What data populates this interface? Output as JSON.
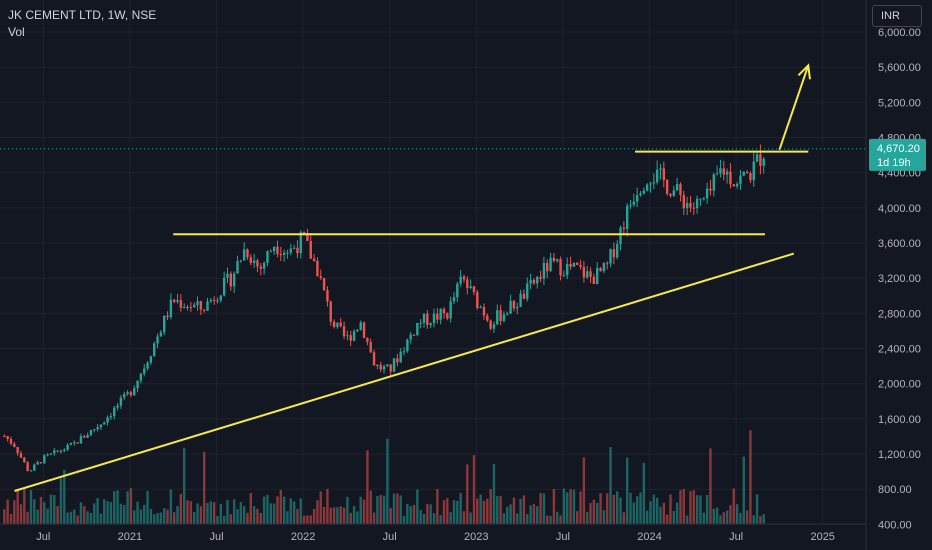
{
  "header": {
    "title": "JK CEMENT LTD, 1W, NSE",
    "volume_label": "Vol"
  },
  "currency_button": "INR",
  "colors": {
    "up": "#26a69a",
    "down": "#ef5350",
    "line": "#f5e94a",
    "price_tag": "#26a69a",
    "background": "#131722",
    "axis_text": "#b2b5be"
  },
  "price_tag": {
    "price": "4,670.20",
    "countdown": "1d 19h",
    "value": 4670.2
  },
  "chart_data": {
    "type": "candlestick",
    "title": "JK CEMENT LTD, 1W, NSE",
    "y_axis": {
      "ticks": [
        400,
        800,
        1200,
        1600,
        2000,
        2400,
        2800,
        3200,
        3600,
        4000,
        4400,
        4800,
        5200,
        5600,
        6000
      ],
      "tick_labels": [
        "400.00",
        "800.00",
        "1,200.00",
        "1,600.00",
        "2,000.00",
        "2,400.00",
        "2,800.00",
        "3,200.00",
        "3,600.00",
        "4,000.00",
        "4,400.00",
        "4,800.00",
        "5,200.00",
        "5,600.00",
        "6,000.00"
      ],
      "range": [
        200,
        6250
      ]
    },
    "x_axis": {
      "labels": [
        "Jul",
        "2021",
        "Jul",
        "2022",
        "Jul",
        "2023",
        "Jul",
        "2024",
        "Jul",
        "2025"
      ],
      "dates": [
        "2020-07",
        "2021-01",
        "2021-07",
        "2022-01",
        "2022-07",
        "2023-01",
        "2023-07",
        "2024-01",
        "2024-07",
        "2025-01"
      ],
      "range": [
        "2020-04",
        "2025-04"
      ]
    },
    "price_path": [
      {
        "date": "2020-04",
        "price": 1450
      },
      {
        "date": "2020-05",
        "price": 1300
      },
      {
        "date": "2020-06",
        "price": 1000
      },
      {
        "date": "2020-07",
        "price": 1150
      },
      {
        "date": "2020-09",
        "price": 1300
      },
      {
        "date": "2020-11",
        "price": 1550
      },
      {
        "date": "2021-01",
        "price": 1900
      },
      {
        "date": "2021-02",
        "price": 2200
      },
      {
        "date": "2021-04",
        "price": 2950
      },
      {
        "date": "2021-06",
        "price": 2850
      },
      {
        "date": "2021-08",
        "price": 3200
      },
      {
        "date": "2021-09",
        "price": 3550
      },
      {
        "date": "2021-10",
        "price": 3300
      },
      {
        "date": "2021-11",
        "price": 3600
      },
      {
        "date": "2021-12",
        "price": 3500
      },
      {
        "date": "2022-01",
        "price": 3650
      },
      {
        "date": "2022-02",
        "price": 3300
      },
      {
        "date": "2022-03",
        "price": 2700
      },
      {
        "date": "2022-04",
        "price": 2500
      },
      {
        "date": "2022-05",
        "price": 2700
      },
      {
        "date": "2022-06",
        "price": 2200
      },
      {
        "date": "2022-07",
        "price": 2150
      },
      {
        "date": "2022-09",
        "price": 2700
      },
      {
        "date": "2022-11",
        "price": 2800
      },
      {
        "date": "2022-12",
        "price": 3200
      },
      {
        "date": "2023-02",
        "price": 2700
      },
      {
        "date": "2023-04",
        "price": 2950
      },
      {
        "date": "2023-06",
        "price": 3350
      },
      {
        "date": "2023-08",
        "price": 3300
      },
      {
        "date": "2023-09",
        "price": 3200
      },
      {
        "date": "2023-10",
        "price": 3300
      },
      {
        "date": "2023-11",
        "price": 3750
      },
      {
        "date": "2023-12",
        "price": 4200
      },
      {
        "date": "2024-01",
        "price": 4400
      },
      {
        "date": "2024-02",
        "price": 4300
      },
      {
        "date": "2024-03",
        "price": 4150
      },
      {
        "date": "2024-04",
        "price": 4000
      },
      {
        "date": "2024-05",
        "price": 4100
      },
      {
        "date": "2024-06",
        "price": 4450
      },
      {
        "date": "2024-07",
        "price": 4300
      },
      {
        "date": "2024-08",
        "price": 4400
      },
      {
        "date": "2024-09",
        "price": 4670
      }
    ],
    "annotations": {
      "resistance_upper": {
        "price": 4640,
        "from": "2023-12",
        "to": "2024-12"
      },
      "resistance_lower": {
        "price": 3700,
        "from": "2021-04",
        "to": "2024-09"
      },
      "support_trendline": {
        "from": {
          "date": "2020-05",
          "price": 780
        },
        "to": {
          "date": "2024-11",
          "price": 3480
        }
      },
      "breakout_arrow": {
        "from": {
          "date": "2024-10",
          "price": 4660
        },
        "to": {
          "date": "2024-12",
          "price": 5620
        }
      }
    }
  }
}
